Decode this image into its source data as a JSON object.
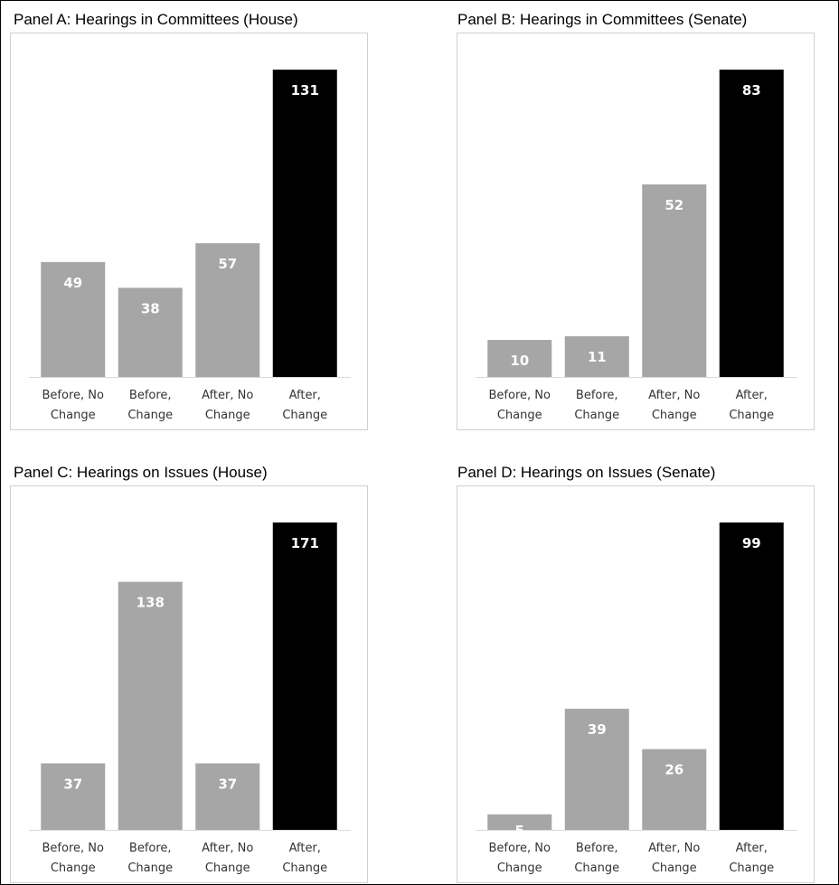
{
  "chart_data": [
    {
      "type": "bar",
      "title": "Panel A: Hearings in Committees (House)",
      "categories": [
        "Before, No Change",
        "Before, Change",
        "After, No Change",
        "After, Change"
      ],
      "category_lines": [
        [
          "Before, No",
          "Change"
        ],
        [
          "Before,",
          "Change"
        ],
        [
          "After, No",
          "Change"
        ],
        [
          "After,",
          "Change"
        ]
      ],
      "values": [
        49,
        38,
        57,
        131
      ],
      "colors": [
        "#a6a6a6",
        "#a6a6a6",
        "#a6a6a6",
        "#000000"
      ],
      "ylim": [
        0,
        131
      ],
      "xlabel": "",
      "ylabel": "",
      "grid": false
    },
    {
      "type": "bar",
      "title": "Panel B: Hearings in Committees (Senate)",
      "categories": [
        "Before, No Change",
        "Before, Change",
        "After, No Change",
        "After, Change"
      ],
      "category_lines": [
        [
          "Before, No",
          "Change"
        ],
        [
          "Before,",
          "Change"
        ],
        [
          "After, No",
          "Change"
        ],
        [
          "After,",
          "Change"
        ]
      ],
      "values": [
        10,
        11,
        52,
        83
      ],
      "colors": [
        "#a6a6a6",
        "#a6a6a6",
        "#a6a6a6",
        "#000000"
      ],
      "ylim": [
        0,
        83
      ],
      "xlabel": "",
      "ylabel": "",
      "grid": false
    },
    {
      "type": "bar",
      "title": "Panel C: Hearings on Issues (House)",
      "categories": [
        "Before, No Change",
        "Before, Change",
        "After, No Change",
        "After, Change"
      ],
      "category_lines": [
        [
          "Before, No",
          "Change"
        ],
        [
          "Before,",
          "Change"
        ],
        [
          "After, No",
          "Change"
        ],
        [
          "After,",
          "Change"
        ]
      ],
      "values": [
        37,
        138,
        37,
        171
      ],
      "colors": [
        "#a6a6a6",
        "#a6a6a6",
        "#a6a6a6",
        "#000000"
      ],
      "ylim": [
        0,
        171
      ],
      "xlabel": "",
      "ylabel": "",
      "grid": false
    },
    {
      "type": "bar",
      "title": "Panel D: Hearings on Issues (Senate)",
      "categories": [
        "Before, No Change",
        "Before, Change",
        "After, No Change",
        "After, Change"
      ],
      "category_lines": [
        [
          "Before, No",
          "Change"
        ],
        [
          "Before,",
          "Change"
        ],
        [
          "After, No",
          "Change"
        ],
        [
          "After,",
          "Change"
        ]
      ],
      "values": [
        5,
        39,
        26,
        99
      ],
      "colors": [
        "#a6a6a6",
        "#a6a6a6",
        "#a6a6a6",
        "#000000"
      ],
      "ylim": [
        0,
        99
      ],
      "xlabel": "",
      "ylabel": "",
      "grid": false
    }
  ]
}
